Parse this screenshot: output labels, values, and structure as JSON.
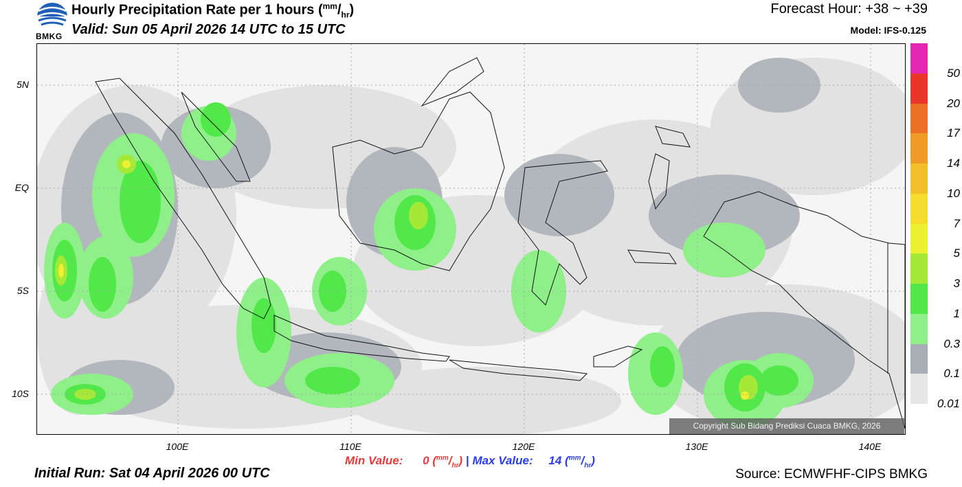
{
  "header": {
    "logo_text": "BMKG",
    "title": "Hourly Precipitation Rate per 1 hours",
    "title_unit_num": "mm",
    "title_unit_den": "hr",
    "valid": "Valid: Sun 05 April 2026 14 UTC to 15 UTC",
    "forecast_hour": "Forecast Hour: +38 ~ +39",
    "model": "Model: IFS-0.125"
  },
  "map": {
    "lat_labels": [
      "5N",
      "EQ",
      "5S",
      "10S"
    ],
    "lon_labels": [
      "100E",
      "110E",
      "120E",
      "130E",
      "140E"
    ],
    "copyright": "Copyright Sub Bidang Prediksi Cuaca BMKG, 2026"
  },
  "footer": {
    "min_label": "Min Value:",
    "min_value": "0",
    "max_label": "Max Value:",
    "max_value": "14",
    "separator": "|",
    "unit_num": "mm",
    "unit_den": "hr",
    "initial_run": "Initial Run: Sat 04 April 2026 00 UTC",
    "source": "Source: ECMWFHF-CIPS BMKG"
  },
  "colorbar": {
    "labels": [
      "0.01",
      "0.1",
      "0.3",
      "1",
      "3",
      "5",
      "7",
      "10",
      "14",
      "17",
      "20",
      "50"
    ],
    "colors": [
      "#e6e6e6",
      "#a9aeb6",
      "#8ff08a",
      "#53e84a",
      "#a5e838",
      "#eef032",
      "#f5dc2e",
      "#f4be2a",
      "#f09a28",
      "#ec7026",
      "#e8362a",
      "#e426b4"
    ]
  }
}
